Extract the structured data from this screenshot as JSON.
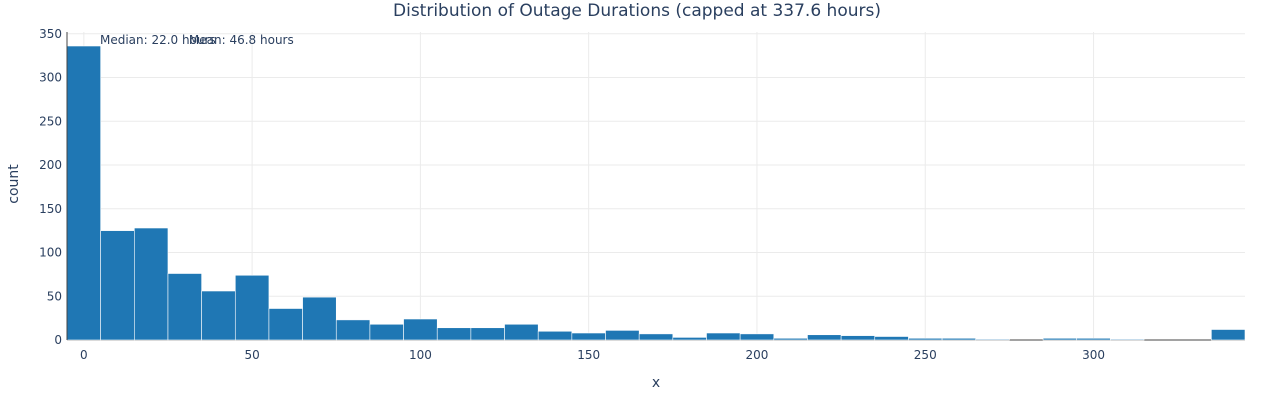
{
  "chart_data": {
    "type": "bar",
    "title": "Distribution of Outage Durations (capped at 337.6 hours)",
    "xlabel": "x",
    "ylabel": "count",
    "xlim": [
      -5,
      345
    ],
    "ylim": [
      0,
      352
    ],
    "bin_width": 10,
    "x_ticks": [
      0,
      50,
      100,
      150,
      200,
      250,
      300
    ],
    "y_ticks": [
      0,
      50,
      100,
      150,
      200,
      250,
      300,
      350
    ],
    "bins": [
      {
        "start": -5,
        "count": 336
      },
      {
        "start": 5,
        "count": 125
      },
      {
        "start": 15,
        "count": 128
      },
      {
        "start": 25,
        "count": 76
      },
      {
        "start": 35,
        "count": 56
      },
      {
        "start": 45,
        "count": 74
      },
      {
        "start": 55,
        "count": 36
      },
      {
        "start": 65,
        "count": 49
      },
      {
        "start": 75,
        "count": 23
      },
      {
        "start": 85,
        "count": 18
      },
      {
        "start": 95,
        "count": 24
      },
      {
        "start": 105,
        "count": 14
      },
      {
        "start": 115,
        "count": 14
      },
      {
        "start": 125,
        "count": 18
      },
      {
        "start": 135,
        "count": 10
      },
      {
        "start": 145,
        "count": 8
      },
      {
        "start": 155,
        "count": 11
      },
      {
        "start": 165,
        "count": 7
      },
      {
        "start": 175,
        "count": 3
      },
      {
        "start": 185,
        "count": 8
      },
      {
        "start": 195,
        "count": 7
      },
      {
        "start": 205,
        "count": 2
      },
      {
        "start": 215,
        "count": 6
      },
      {
        "start": 225,
        "count": 5
      },
      {
        "start": 235,
        "count": 4
      },
      {
        "start": 245,
        "count": 2
      },
      {
        "start": 255,
        "count": 2
      },
      {
        "start": 265,
        "count": 1
      },
      {
        "start": 275,
        "count": 0
      },
      {
        "start": 285,
        "count": 2
      },
      {
        "start": 295,
        "count": 2
      },
      {
        "start": 305,
        "count": 1
      },
      {
        "start": 315,
        "count": 0
      },
      {
        "start": 325,
        "count": 0
      },
      {
        "start": 335,
        "count": 12
      }
    ],
    "bar_color": "#1f77b4",
    "annotations": [
      {
        "x": 22.0,
        "text": "Median: 22.0 hours"
      },
      {
        "x": 46.8,
        "text": "Mean: 46.8 hours"
      }
    ],
    "grid": true
  }
}
